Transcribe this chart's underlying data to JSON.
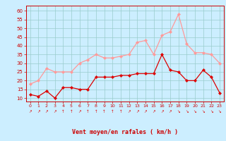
{
  "hours": [
    0,
    1,
    2,
    3,
    4,
    5,
    6,
    7,
    8,
    9,
    10,
    11,
    12,
    13,
    14,
    15,
    16,
    17,
    18,
    19,
    20,
    21,
    22,
    23
  ],
  "vent_moyen": [
    12,
    11,
    14,
    10,
    16,
    16,
    15,
    15,
    22,
    22,
    22,
    23,
    23,
    24,
    24,
    24,
    35,
    26,
    25,
    20,
    20,
    26,
    22,
    13
  ],
  "rafales": [
    18,
    20,
    27,
    25,
    25,
    25,
    30,
    32,
    35,
    33,
    33,
    34,
    35,
    42,
    43,
    35,
    46,
    48,
    58,
    41,
    36,
    36,
    35,
    30
  ],
  "line_color_moyen": "#dd0000",
  "line_color_rafales": "#ff9999",
  "bg_color": "#cceeff",
  "grid_color": "#99cccc",
  "xlabel": "Vent moyen/en rafales ( km/h )",
  "xlabel_color": "#cc0000",
  "ytick_labels": [
    "10",
    "15",
    "20",
    "25",
    "30",
    "35",
    "40",
    "45",
    "50",
    "55",
    "60"
  ],
  "ytick_values": [
    10,
    15,
    20,
    25,
    30,
    35,
    40,
    45,
    50,
    55,
    60
  ],
  "ylim": [
    8,
    63
  ],
  "xlim": [
    -0.5,
    23.5
  ],
  "arrows": [
    "↗",
    "↗",
    "↗",
    "↗",
    "↑",
    "↑",
    "↗",
    "↑",
    "↑",
    "↑",
    "↑",
    "↑",
    "↗",
    "↗",
    "↗",
    "↗",
    "↗",
    "↗",
    "↘",
    "↘",
    "↘",
    "↘",
    "↘",
    "↘"
  ]
}
